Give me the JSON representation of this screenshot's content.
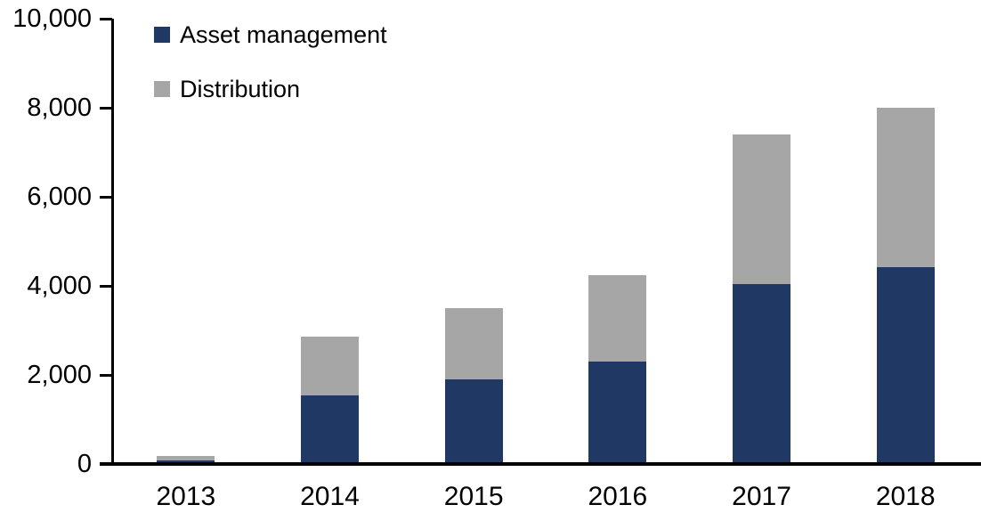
{
  "chart_data": {
    "type": "bar",
    "stacked": true,
    "title": "",
    "xlabel": "",
    "ylabel": "",
    "categories": [
      "2013",
      "2014",
      "2015",
      "2016",
      "2017",
      "2018"
    ],
    "series": [
      {
        "name": "Asset management",
        "color": "#203864",
        "values": [
          90,
          1550,
          1900,
          2310,
          4050,
          4430
        ]
      },
      {
        "name": "Distribution",
        "color": "#A6A6A6",
        "values": [
          100,
          1320,
          1600,
          1940,
          3350,
          3570
        ]
      }
    ],
    "stack_totals": [
      190,
      2870,
      3500,
      4250,
      7400,
      8000
    ],
    "ylim": [
      0,
      10000
    ],
    "y_ticks": [
      {
        "value": 0,
        "label": "0"
      },
      {
        "value": 2000,
        "label": "2,000"
      },
      {
        "value": 4000,
        "label": "4,000"
      },
      {
        "value": 6000,
        "label": "6,000"
      },
      {
        "value": 8000,
        "label": "8,000"
      },
      {
        "value": 10000,
        "label": "10,000"
      }
    ],
    "grid": false,
    "legend_position": "top-left-vertical",
    "axis_color": "#000000",
    "background_color": "#ffffff"
  }
}
